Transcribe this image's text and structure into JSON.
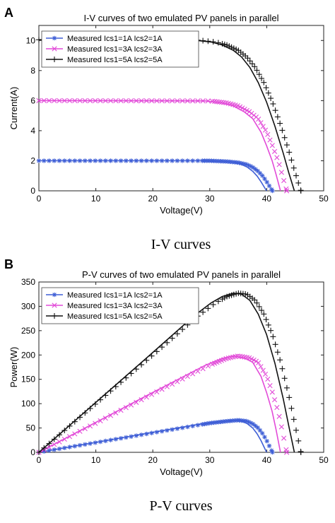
{
  "panels": [
    {
      "letter": "A",
      "caption": "I-V curves"
    },
    {
      "letter": "B",
      "caption": "P-V curves"
    }
  ],
  "chart_data": [
    {
      "type": "line",
      "title": "I-V curves of two emulated PV panels in parallel",
      "xlabel": "Voltage(V)",
      "ylabel": "Current(A)",
      "xlim": [
        0,
        50
      ],
      "ylim": [
        0,
        11
      ],
      "xticks": [
        0,
        10,
        20,
        30,
        40,
        50
      ],
      "yticks": [
        0,
        2,
        4,
        6,
        8,
        10
      ],
      "grid": false,
      "legend_position": "top-left",
      "series": [
        {
          "name": "Measured Ics1=1A Ics2=1A",
          "color": "#3f5fd6",
          "marker": "asterisk",
          "x": [
            0,
            30,
            33,
            35,
            36.5,
            37.5,
            38.5,
            39.3,
            40,
            40.5,
            41
          ],
          "y": [
            2.0,
            2.0,
            1.95,
            1.88,
            1.75,
            1.58,
            1.3,
            0.98,
            0.6,
            0.3,
            0
          ]
        },
        {
          "name": "Measured Ics1=3A Ics2=3A",
          "color": "#e24ad8",
          "marker": "x",
          "x": [
            0,
            30,
            33,
            35,
            37,
            38.5,
            40,
            41,
            42,
            42.7,
            43.5
          ],
          "y": [
            6.0,
            5.98,
            5.85,
            5.65,
            5.25,
            4.8,
            3.9,
            3.0,
            2.0,
            1.1,
            0
          ]
        },
        {
          "name": "Measured Ics1=5A Ics2=5A",
          "color": "#111111",
          "marker": "plus",
          "x": [
            0,
            28,
            31,
            33,
            35,
            36.5,
            38,
            39.5,
            41,
            42.5,
            44,
            45,
            46
          ],
          "y": [
            10.05,
            10.02,
            9.9,
            9.7,
            9.35,
            8.9,
            8.2,
            7.2,
            5.9,
            4.3,
            2.5,
            1.2,
            0
          ]
        }
      ]
    },
    {
      "type": "line",
      "title": "P-V curves of two emulated PV panels in parallel",
      "xlabel": "Voltage(V)",
      "ylabel": "Power(W)",
      "xlim": [
        0,
        50
      ],
      "ylim": [
        0,
        350
      ],
      "xticks": [
        0,
        10,
        20,
        30,
        40,
        50
      ],
      "yticks": [
        0,
        50,
        100,
        150,
        200,
        250,
        300,
        350
      ],
      "grid": false,
      "legend_position": "top-left",
      "series": [
        {
          "name": "Measured Ics1=1A Ics2=1A",
          "color": "#3f5fd6",
          "marker": "asterisk",
          "x": [
            0,
            10,
            20,
            30,
            33,
            35,
            36.5,
            37.5,
            38.5,
            39.3,
            40,
            40.5,
            41
          ],
          "y": [
            0,
            20,
            40,
            60,
            64,
            66,
            64,
            59,
            50,
            38,
            24,
            12,
            0
          ]
        },
        {
          "name": "Measured Ics1=3A Ics2=3A",
          "color": "#e24ad8",
          "marker": "x",
          "x": [
            0,
            10,
            20,
            30,
            33,
            35,
            37,
            38.5,
            40,
            41,
            42,
            42.7,
            43.5
          ],
          "y": [
            0,
            60,
            120,
            179,
            193,
            198,
            194,
            185,
            156,
            123,
            84,
            47,
            0
          ]
        },
        {
          "name": "Measured Ics1=5A Ics2=5A",
          "color": "#111111",
          "marker": "plus",
          "x": [
            0,
            10,
            20,
            28,
            31,
            33,
            35,
            36.5,
            38,
            39.5,
            41,
            42.5,
            44,
            45,
            46
          ],
          "y": [
            0,
            100,
            200,
            281,
            307,
            320,
            327,
            325,
            312,
            284,
            242,
            183,
            110,
            54,
            0
          ]
        }
      ]
    }
  ]
}
